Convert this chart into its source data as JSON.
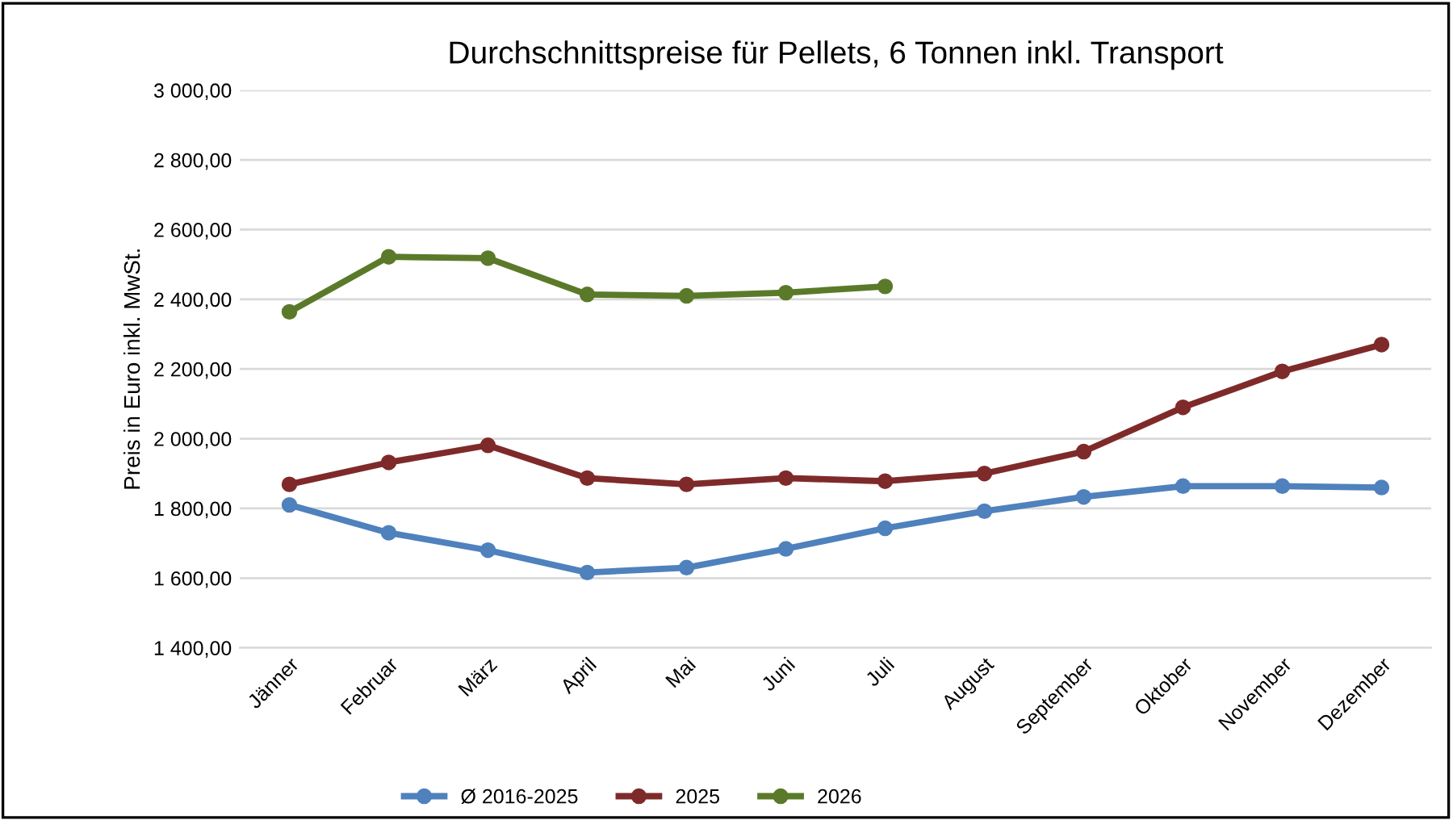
{
  "chart_data": {
    "type": "line",
    "title": "Durchschnittspreise für Pellets, 6 Tonnen inkl. Transport",
    "ylabel": "Preis in Euro inkl. MwSt.",
    "categories": [
      "Jänner",
      "Februar",
      "März",
      "April",
      "Mai",
      "Juni",
      "Juli",
      "August",
      "September",
      "Oktober",
      "November",
      "Dezember"
    ],
    "series": [
      {
        "name": "Ø 2016-2025",
        "color": "#4f81bd",
        "values": [
          1810,
          1730,
          1680,
          1616,
          1630,
          1684,
          1743,
          1792,
          1833,
          1864,
          1864,
          1860
        ]
      },
      {
        "name": "2025",
        "color": "#7f2a2a",
        "values": [
          1869,
          1932,
          1981,
          1887,
          1869,
          1887,
          1878,
          1900,
          1963,
          2090,
          2193,
          2270
        ]
      },
      {
        "name": "2026",
        "color": "#5a7a2a",
        "values": [
          2364,
          2522,
          2518,
          2414,
          2410,
          2419,
          2437,
          null,
          null,
          null,
          null,
          null
        ]
      }
    ],
    "ylim": [
      1400,
      3000
    ],
    "yticks": [
      {
        "value": 1400,
        "label": "1 400,00"
      },
      {
        "value": 1600,
        "label": "1 600,00"
      },
      {
        "value": 1800,
        "label": "1 800,00"
      },
      {
        "value": 2000,
        "label": "2 000,00"
      },
      {
        "value": 2200,
        "label": "2 200,00"
      },
      {
        "value": 2400,
        "label": "2 400,00"
      },
      {
        "value": 2600,
        "label": "2 600,00"
      },
      {
        "value": 2800,
        "label": "2 800,00"
      },
      {
        "value": 3000,
        "label": "3 000,00"
      }
    ],
    "grid": "y",
    "legend": "bottom",
    "marker": "circle",
    "line_style": "solid"
  }
}
